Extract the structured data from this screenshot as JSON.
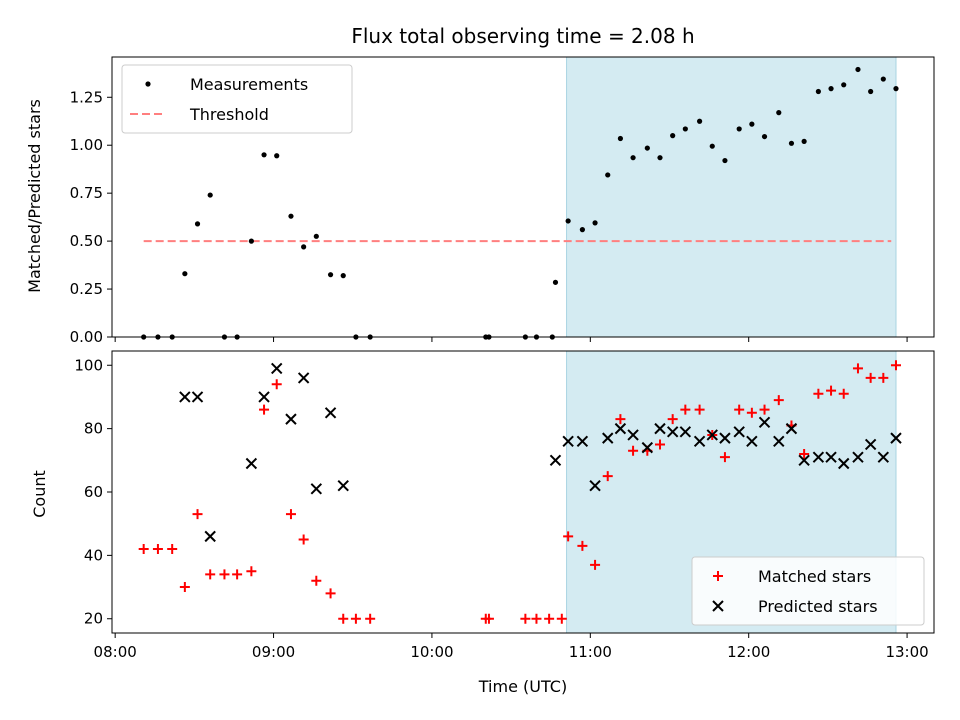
{
  "chart_data": {
    "title": "Flux total observing time = 2.08 h",
    "xlabel": "Time (UTC)",
    "x_unit": "hours UTC",
    "xlim": [
      7.98,
      13.17
    ],
    "xticks": [
      {
        "value": 8,
        "label": "08:00"
      },
      {
        "value": 9,
        "label": "09:00"
      },
      {
        "value": 10,
        "label": "10:00"
      },
      {
        "value": 11,
        "label": "11:00"
      },
      {
        "value": 12,
        "label": "12:00"
      },
      {
        "value": 13,
        "label": "13:00"
      }
    ],
    "shaded_region": {
      "x": [
        10.85,
        12.93
      ],
      "color": "#d4ebf2"
    },
    "subplots": [
      {
        "type": "scatter",
        "ylabel": "Matched/Predicted stars",
        "ylim": [
          0,
          1.46
        ],
        "yticks": [
          {
            "value": 0,
            "label": "0.00"
          },
          {
            "value": 0.25,
            "label": "0.25"
          },
          {
            "value": 0.5,
            "label": "0.50"
          },
          {
            "value": 0.75,
            "label": "0.75"
          },
          {
            "value": 1.0,
            "label": "1.00"
          },
          {
            "value": 1.25,
            "label": "1.25"
          }
        ],
        "legend": {
          "position": "top-left",
          "entries": [
            {
              "label": "Measurements",
              "marker": "dot",
              "color": "#000000"
            },
            {
              "label": "Threshold",
              "marker": "dashed-line",
              "color": "#ff7f7f"
            }
          ]
        },
        "threshold": {
          "y": 0.5,
          "x": [
            8.18,
            12.9
          ],
          "color": "#ff7f7f"
        },
        "series": [
          {
            "name": "Measurements",
            "color": "#000000",
            "points": [
              [
                8.18,
                0.0
              ],
              [
                8.27,
                0.0
              ],
              [
                8.36,
                0.0
              ],
              [
                8.44,
                0.33
              ],
              [
                8.52,
                0.59
              ],
              [
                8.6,
                0.74
              ],
              [
                8.69,
                0.0
              ],
              [
                8.77,
                0.0
              ],
              [
                8.86,
                0.5
              ],
              [
                8.94,
                0.95
              ],
              [
                9.02,
                0.945
              ],
              [
                9.11,
                0.63
              ],
              [
                9.19,
                0.47
              ],
              [
                9.27,
                0.525
              ],
              [
                9.36,
                0.325
              ],
              [
                9.44,
                0.32
              ],
              [
                9.52,
                0.0
              ],
              [
                9.61,
                0.0
              ],
              [
                10.34,
                0.0
              ],
              [
                10.36,
                0.0
              ],
              [
                10.59,
                0.0
              ],
              [
                10.66,
                0.0
              ],
              [
                10.76,
                0.0
              ],
              [
                10.78,
                0.285
              ],
              [
                10.86,
                0.605
              ],
              [
                10.95,
                0.56
              ],
              [
                11.03,
                0.595
              ],
              [
                11.11,
                0.845
              ],
              [
                11.19,
                1.035
              ],
              [
                11.27,
                0.935
              ],
              [
                11.36,
                0.985
              ],
              [
                11.44,
                0.935
              ],
              [
                11.52,
                1.05
              ],
              [
                11.6,
                1.085
              ],
              [
                11.69,
                1.125
              ],
              [
                11.77,
                0.995
              ],
              [
                11.85,
                0.92
              ],
              [
                11.94,
                1.085
              ],
              [
                12.02,
                1.11
              ],
              [
                12.1,
                1.045
              ],
              [
                12.19,
                1.17
              ],
              [
                12.27,
                1.01
              ],
              [
                12.35,
                1.02
              ],
              [
                12.44,
                1.28
              ],
              [
                12.52,
                1.295
              ],
              [
                12.6,
                1.315
              ],
              [
                12.69,
                1.395
              ],
              [
                12.77,
                1.28
              ],
              [
                12.85,
                1.345
              ],
              [
                12.93,
                1.295
              ]
            ]
          }
        ]
      },
      {
        "type": "scatter",
        "ylabel": "Count",
        "ylim": [
          15.5,
          104.5
        ],
        "yticks": [
          {
            "value": 20,
            "label": "20"
          },
          {
            "value": 40,
            "label": "40"
          },
          {
            "value": 60,
            "label": "60"
          },
          {
            "value": 80,
            "label": "80"
          },
          {
            "value": 100,
            "label": "100"
          }
        ],
        "legend": {
          "position": "bottom-right",
          "entries": [
            {
              "label": "Matched stars",
              "marker": "plus",
              "color": "#ff0000"
            },
            {
              "label": "Predicted stars",
              "marker": "cross",
              "color": "#000000"
            }
          ]
        },
        "series": [
          {
            "name": "Matched stars",
            "marker": "plus",
            "color": "#ff0000",
            "points": [
              [
                8.18,
                42
              ],
              [
                8.27,
                42
              ],
              [
                8.36,
                42
              ],
              [
                8.44,
                30
              ],
              [
                8.52,
                53
              ],
              [
                8.6,
                34
              ],
              [
                8.69,
                34
              ],
              [
                8.77,
                34
              ],
              [
                8.86,
                35
              ],
              [
                8.94,
                86
              ],
              [
                9.02,
                94
              ],
              [
                9.11,
                53
              ],
              [
                9.19,
                45
              ],
              [
                9.27,
                32
              ],
              [
                9.36,
                28
              ],
              [
                9.44,
                20
              ],
              [
                9.52,
                20
              ],
              [
                9.61,
                20
              ],
              [
                10.34,
                20
              ],
              [
                10.36,
                20
              ],
              [
                10.59,
                20
              ],
              [
                10.66,
                20
              ],
              [
                10.74,
                20
              ],
              [
                10.82,
                20
              ],
              [
                10.86,
                46
              ],
              [
                10.95,
                43
              ],
              [
                11.03,
                37
              ],
              [
                11.11,
                65
              ],
              [
                11.19,
                83
              ],
              [
                11.27,
                73
              ],
              [
                11.36,
                73
              ],
              [
                11.44,
                75
              ],
              [
                11.52,
                83
              ],
              [
                11.6,
                86
              ],
              [
                11.69,
                86
              ],
              [
                11.77,
                78
              ],
              [
                11.85,
                71
              ],
              [
                11.94,
                86
              ],
              [
                12.02,
                85
              ],
              [
                12.1,
                86
              ],
              [
                12.19,
                89
              ],
              [
                12.27,
                81
              ],
              [
                12.35,
                72
              ],
              [
                12.44,
                91
              ],
              [
                12.52,
                92
              ],
              [
                12.6,
                91
              ],
              [
                12.69,
                99
              ],
              [
                12.77,
                96
              ],
              [
                12.85,
                96
              ],
              [
                12.93,
                100
              ]
            ]
          },
          {
            "name": "Predicted stars",
            "marker": "cross",
            "color": "#000000",
            "points": [
              [
                8.44,
                90
              ],
              [
                8.52,
                90
              ],
              [
                8.6,
                46
              ],
              [
                8.86,
                69
              ],
              [
                8.94,
                90
              ],
              [
                9.02,
                99
              ],
              [
                9.11,
                83
              ],
              [
                9.19,
                96
              ],
              [
                9.27,
                61
              ],
              [
                9.36,
                85
              ],
              [
                9.44,
                62
              ],
              [
                10.78,
                70
              ],
              [
                10.86,
                76
              ],
              [
                10.95,
                76
              ],
              [
                11.03,
                62
              ],
              [
                11.11,
                77
              ],
              [
                11.19,
                80
              ],
              [
                11.27,
                78
              ],
              [
                11.36,
                74
              ],
              [
                11.44,
                80
              ],
              [
                11.52,
                79
              ],
              [
                11.6,
                79
              ],
              [
                11.69,
                76
              ],
              [
                11.77,
                78
              ],
              [
                11.85,
                77
              ],
              [
                11.94,
                79
              ],
              [
                12.02,
                76
              ],
              [
                12.1,
                82
              ],
              [
                12.19,
                76
              ],
              [
                12.27,
                80
              ],
              [
                12.35,
                70
              ],
              [
                12.44,
                71
              ],
              [
                12.52,
                71
              ],
              [
                12.6,
                69
              ],
              [
                12.69,
                71
              ],
              [
                12.77,
                75
              ],
              [
                12.85,
                71
              ],
              [
                12.93,
                77
              ]
            ]
          }
        ]
      }
    ]
  }
}
